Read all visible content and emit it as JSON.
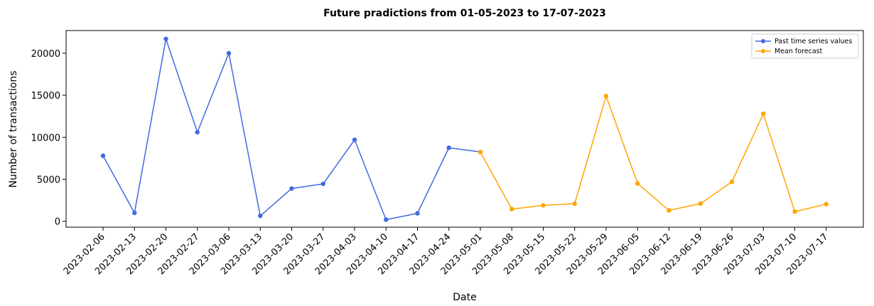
{
  "chart_data": {
    "type": "line",
    "title": "Future pradictions from 01-05-2023 to 17-07-2023",
    "xlabel": "Date",
    "ylabel": "Number of transactions",
    "ylim": [
      -700,
      22700
    ],
    "y_ticks": [
      0,
      5000,
      10000,
      15000,
      20000
    ],
    "grid": false,
    "legend_position": "top-right",
    "categories": [
      "2023-02-06",
      "2023-02-13",
      "2023-02-20",
      "2023-02-27",
      "2023-03-06",
      "2023-03-13",
      "2023-03-20",
      "2023-03-27",
      "2023-04-03",
      "2023-04-10",
      "2023-04-17",
      "2023-04-24",
      "2023-05-01",
      "2023-05-08",
      "2023-05-15",
      "2023-05-22",
      "2023-05-29",
      "2023-06-05",
      "2023-06-12",
      "2023-06-19",
      "2023-06-26",
      "2023-07-03",
      "2023-07-10",
      "2023-07-17"
    ],
    "series": [
      {
        "name": "Past time series values",
        "color": "#4169e1",
        "x": [
          "2023-02-06",
          "2023-02-13",
          "2023-02-20",
          "2023-02-27",
          "2023-03-06",
          "2023-03-13",
          "2023-03-20",
          "2023-03-27",
          "2023-04-03",
          "2023-04-10",
          "2023-04-17",
          "2023-04-24",
          "2023-05-01"
        ],
        "values": [
          7800,
          1000,
          21700,
          10600,
          20000,
          650,
          3900,
          4450,
          9700,
          200,
          950,
          8750,
          8250
        ]
      },
      {
        "name": "Mean forecast",
        "color": "#ffa500",
        "x": [
          "2023-05-01",
          "2023-05-08",
          "2023-05-15",
          "2023-05-22",
          "2023-05-29",
          "2023-06-05",
          "2023-06-12",
          "2023-06-19",
          "2023-06-26",
          "2023-07-03",
          "2023-07-10",
          "2023-07-17"
        ],
        "values": [
          8250,
          1450,
          1900,
          2100,
          14900,
          4500,
          1300,
          2100,
          4700,
          12800,
          1150,
          2050
        ]
      }
    ]
  }
}
